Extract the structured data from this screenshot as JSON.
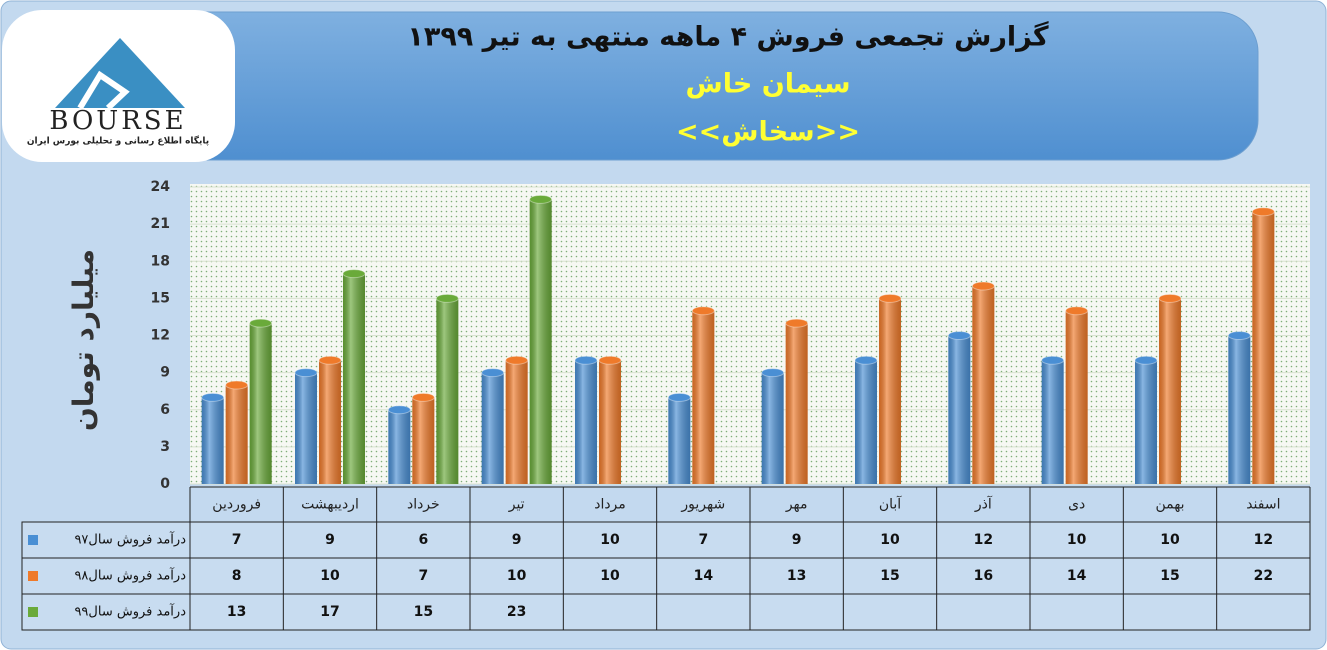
{
  "logo": {
    "name": "BOURSE",
    "tagline": "پایگاه اطلاع رسانی و تحلیلی بورس ایران"
  },
  "chart_data": {
    "type": "bar",
    "title": "گزارش تجمعی فروش  ۴ ماهه منتهی به تیر ۱۳۹۹",
    "subtitle": "سیمان خاش",
    "symbol": "<<سخاش>>",
    "y_label": "میلیارد تومان",
    "categories": [
      "فروردین",
      "اردیبهشت",
      "خرداد",
      "تیر",
      "مرداد",
      "شهریور",
      "مهر",
      "آبان",
      "آذر",
      "دی",
      "بهمن",
      "اسفند"
    ],
    "series": [
      {
        "name": "درآمد فروش سال۹۷",
        "color": "#4a8fd4",
        "values": [
          7,
          9,
          6,
          9,
          10,
          7,
          9,
          10,
          12,
          10,
          10,
          12
        ]
      },
      {
        "name": "درآمد فروش سال۹۸",
        "color": "#ef7a2a",
        "values": [
          8,
          10,
          7,
          10,
          10,
          14,
          13,
          15,
          16,
          14,
          15,
          22
        ]
      },
      {
        "name": "درآمد فروش سال۹۹",
        "color": "#6aaa3a",
        "values": [
          13,
          17,
          15,
          23,
          null,
          null,
          null,
          null,
          null,
          null,
          null,
          null
        ]
      }
    ],
    "ylim": [
      0,
      24
    ],
    "yticks": [
      0,
      3,
      6,
      9,
      12,
      15,
      18,
      21,
      24
    ],
    "grid": true
  }
}
